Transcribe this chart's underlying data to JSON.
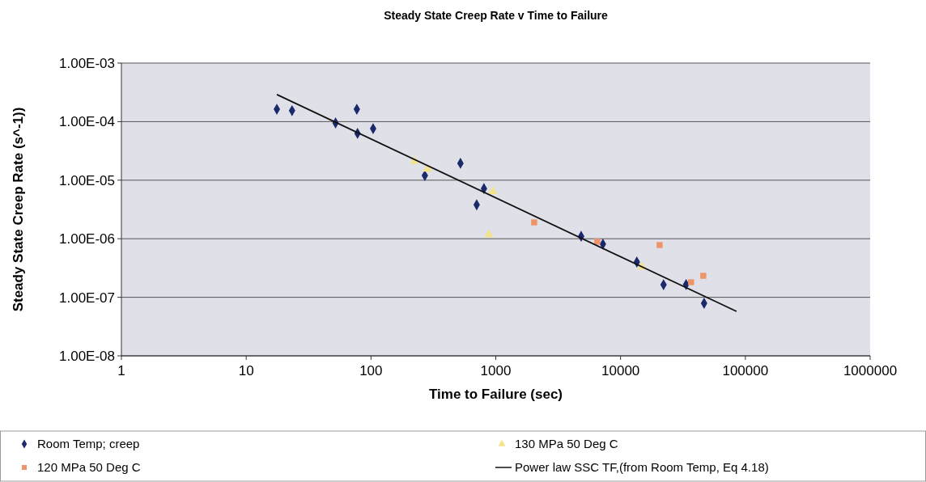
{
  "chart_data": {
    "type": "scatter",
    "title": "Steady State Creep Rate v Time to Failure",
    "xlabel": "Time to Failure (sec)",
    "ylabel": "Steady State Creep Rate (s^-1))",
    "log": "xy",
    "grid": "y",
    "legend": "bottom",
    "xlim": [
      1,
      1000000
    ],
    "xticks": [
      1,
      10,
      100,
      1000,
      10000,
      100000,
      1000000
    ],
    "ylim": [
      1e-08,
      0.001
    ],
    "yticks": [
      {
        "value": 1e-08,
        "label": "1.00E-08"
      },
      {
        "value": 1e-07,
        "label": "1.00E-07"
      },
      {
        "value": 1e-06,
        "label": "1.00E-06"
      },
      {
        "value": 1e-05,
        "label": "1.00E-05"
      },
      {
        "value": 0.0001,
        "label": "1.00E-04"
      },
      {
        "value": 0.001,
        "label": "1.00E-03"
      }
    ],
    "series": [
      {
        "name": "Room Temp; creep",
        "marker": "diamond",
        "color": "#1b2a6b",
        "x": [
          17.6,
          23.3,
          52,
          77,
          78,
          104,
          270,
          521,
          703,
          804,
          4830,
          7220,
          13500,
          22100,
          33500,
          46700
        ],
        "values": [
          0.000163,
          0.000154,
          9.5e-05,
          0.000163,
          6.3e-05,
          7.6e-05,
          1.2e-05,
          1.94e-05,
          3.8e-06,
          7.2e-06,
          1.1e-06,
          8.1e-07,
          4e-07,
          1.64e-07,
          1.65e-07,
          7.9e-08
        ]
      },
      {
        "name": "130 MPa 50 Deg C",
        "marker": "triangle",
        "color": "#f3e38c",
        "x": [
          223,
          283,
          880,
          948,
          14800
        ],
        "values": [
          2.1e-05,
          1.55e-05,
          1.18e-06,
          6.4e-06,
          3.3e-07
        ]
      },
      {
        "name": "120 MPa 50 Deg C",
        "marker": "square",
        "color": "#ef9468",
        "x": [
          2030,
          6500,
          20560,
          36700,
          46000
        ],
        "values": [
          1.9e-06,
          8.9e-07,
          7.8e-07,
          1.81e-07,
          2.33e-07
        ]
      },
      {
        "name": "Power law SSC TF,(from Room Temp, Eq 4.18)",
        "type": "line",
        "marker": "none",
        "line_style": "solid",
        "color": "#111111",
        "x": [
          17.6,
          84900
        ],
        "values": [
          0.00029,
          5.75e-08
        ]
      }
    ]
  }
}
